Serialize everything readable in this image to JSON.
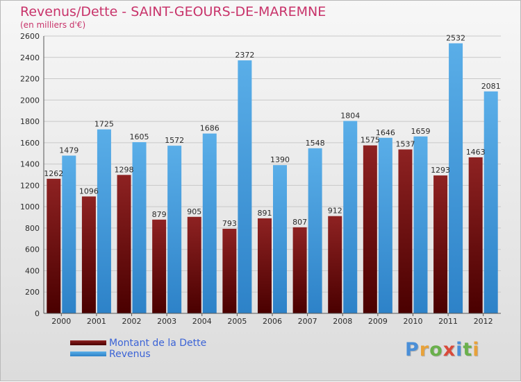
{
  "title": "Revenus/Dette - SAINT-GEOURS-DE-MAREMNE",
  "subtitle": "(en milliers d'€)",
  "legend": {
    "debt_label": "Montant de la Dette",
    "revenue_label": "Revenus"
  },
  "logo": {
    "letters": [
      "P",
      "r",
      "o",
      "x",
      "i",
      "t",
      "i"
    ],
    "colors": [
      "#4a8fd8",
      "#e8a23a",
      "#6ab04c",
      "#d94a3a",
      "#4a8fd8",
      "#6ab04c",
      "#e8a23a"
    ]
  },
  "colors": {
    "debt": "#6b0a0a",
    "revenue": "#3f97dc",
    "grid": "#c8c8c8",
    "text": "#2a2a2a"
  },
  "chart_data": {
    "type": "bar",
    "categories": [
      "2000",
      "2001",
      "2002",
      "2003",
      "2004",
      "2005",
      "2006",
      "2007",
      "2008",
      "2009",
      "2010",
      "2011",
      "2012"
    ],
    "series": [
      {
        "name": "Montant de la Dette",
        "values": [
          1262,
          1096,
          1298,
          879,
          905,
          793,
          891,
          807,
          912,
          1575,
          1537,
          1293,
          1463
        ],
        "labels": [
          "1262",
          "1096",
          "1298",
          "879",
          "905",
          "793",
          "891",
          "807",
          "912",
          "1575",
          "1537",
          "1293",
          "1463"
        ]
      },
      {
        "name": "Revenus",
        "values": [
          1479,
          1725,
          1605,
          1572,
          1686,
          2372,
          1390,
          1548,
          1804,
          1646,
          1659,
          2532,
          2081
        ],
        "labels": [
          "1479",
          "1725",
          "1605",
          "1572",
          "1686",
          "2372",
          "1390",
          "1548",
          "1804",
          "1646",
          "1659",
          "2532",
          "2081"
        ]
      }
    ],
    "yticks": [
      "0",
      "200",
      "400",
      "600",
      "800",
      "1000",
      "1200",
      "1400",
      "1600",
      "1800",
      "2000",
      "2200",
      "2400",
      "2600"
    ],
    "ylim": [
      0,
      2600
    ],
    "grid": true
  }
}
